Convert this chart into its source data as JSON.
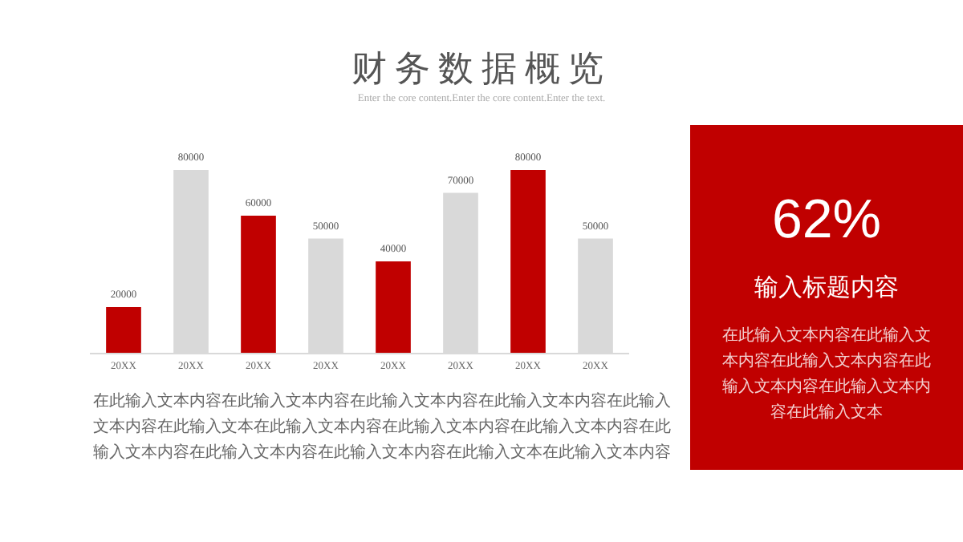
{
  "chart_data": [
    {
      "type": "bar",
      "title": "财务数据概览",
      "subtitle": "Enter the core content.Enter the core content.Enter the text.",
      "categories": [
        "20XX",
        "20XX",
        "20XX",
        "20XX",
        "20XX",
        "20XX",
        "20XX",
        "20XX"
      ],
      "values": [
        20000,
        80000,
        60000,
        50000,
        40000,
        70000,
        80000,
        50000
      ],
      "colors": [
        "#c00000",
        "#d9d9d9",
        "#c00000",
        "#d9d9d9",
        "#c00000",
        "#d9d9d9",
        "#c00000",
        "#d9d9d9"
      ],
      "data_labels": true,
      "annotations": [
        "在此输入文本内容在此输入文本内容在此输入文本内容在此输入文本内容在此输入文本内容在此输入文本在此输入文本内容在此输入文本内容在此输入文本内容在此输入文本内容在此输入文本内容在此输入文本内容在此输入文本在此输入文本内容"
      ]
    },
    {
      "type": "other",
      "title": "62%",
      "subtitle": "输入标题内容",
      "annotations": [
        "在此输入文本内容在此输入文本内容在此输入文本内容在此输入文本内容在此输入文本内容在此输入文本"
      ]
    }
  ]
}
